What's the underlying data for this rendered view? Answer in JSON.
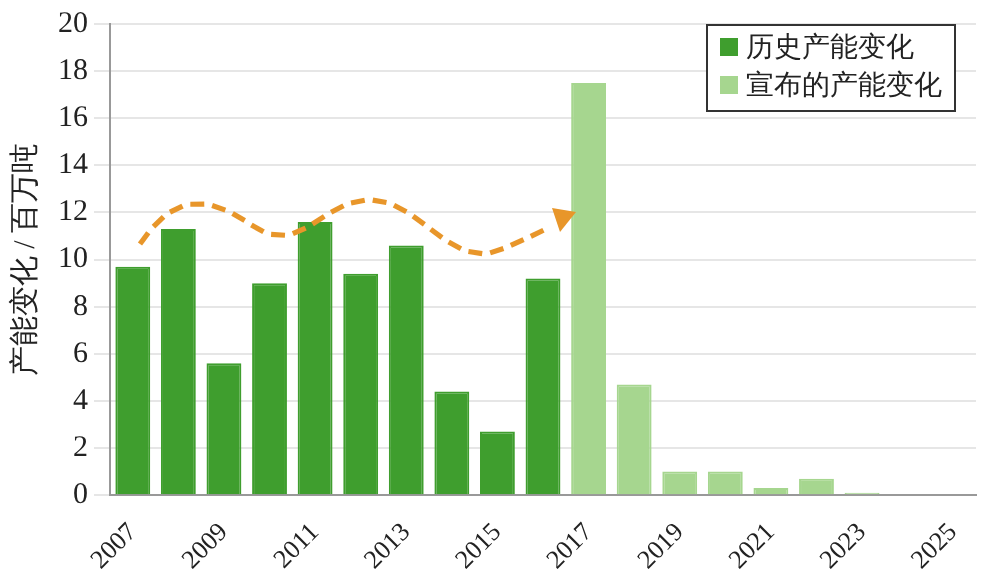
{
  "chart_data": {
    "type": "bar",
    "ylabel": "产能变化 / 百万吨",
    "categories": [
      "2007",
      null,
      "2009",
      null,
      "2011",
      null,
      "2013",
      null,
      "2015",
      null,
      "2017",
      null,
      "2019",
      null,
      "2021",
      null,
      "2023",
      null,
      "2025"
    ],
    "series": [
      {
        "name": "历史产能变化",
        "color": "#3f9e2e",
        "values": [
          9.7,
          11.3,
          5.6,
          9.0,
          11.6,
          9.4,
          10.6,
          4.4,
          2.7,
          9.2,
          null,
          null,
          null,
          null,
          null,
          null,
          null,
          null,
          null
        ]
      },
      {
        "name": "宣布的产能变化",
        "color": "#a6d68f",
        "values": [
          null,
          null,
          null,
          null,
          null,
          null,
          null,
          null,
          null,
          null,
          17.5,
          4.7,
          1.0,
          1.0,
          0.3,
          0.7,
          0.1,
          0,
          0
        ]
      }
    ],
    "ylim": [
      0,
      20
    ],
    "yticks": [
      0,
      2,
      4,
      6,
      8,
      10,
      12,
      14,
      16,
      18,
      20
    ],
    "grid": "y",
    "legend": "top right"
  }
}
